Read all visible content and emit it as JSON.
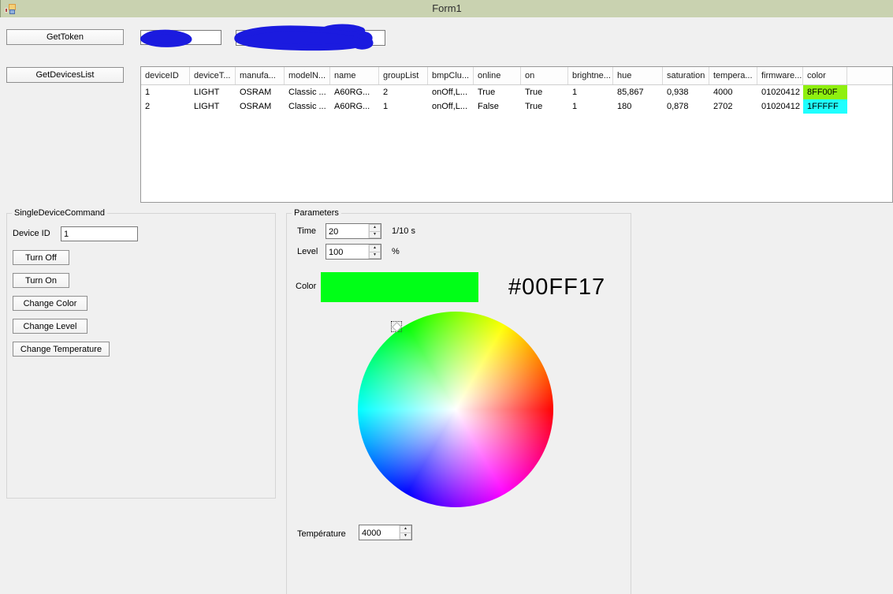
{
  "window": {
    "title": "Form1"
  },
  "toolbar": {
    "get_token_label": "GetToken",
    "get_devices_list_label": "GetDevicesList",
    "token_field_value": "",
    "secret_field_value": ""
  },
  "grid": {
    "columns": [
      "deviceID",
      "deviceT...",
      "manufa...",
      "modelN...",
      "name",
      "groupList",
      "bmpClu...",
      "online",
      "on",
      "brightne...",
      "hue",
      "saturation",
      "tempera...",
      "firmware...",
      "color"
    ],
    "rows": [
      {
        "cells": [
          "1",
          "LIGHT",
          "OSRAM",
          "Classic ...",
          "A60RG...",
          "2",
          "onOff,L...",
          "True",
          "True",
          "1",
          "85,867",
          "0,938",
          "4000",
          "01020412",
          "8FF00F"
        ],
        "color_bg": "#8FF00F"
      },
      {
        "cells": [
          "2",
          "LIGHT",
          "OSRAM",
          "Classic ...",
          "A60RG...",
          "1",
          "onOff,L...",
          "False",
          "True",
          "1",
          "180",
          "0,878",
          "2702",
          "01020412",
          "1FFFFF"
        ],
        "color_bg": "#1FFFFF"
      }
    ]
  },
  "single_device_command": {
    "title": "SingleDeviceCommand",
    "device_id_label": "Device ID",
    "device_id_value": "1",
    "turn_off_label": "Turn Off",
    "turn_on_label": "Turn On",
    "change_color_label": "Change Color",
    "change_level_label": "Change Level",
    "change_temperature_label": "Change Temperature"
  },
  "parameters": {
    "title": "Parameters",
    "time_label": "Time",
    "time_value": "20",
    "time_unit": "1/10 s",
    "level_label": "Level",
    "level_value": "100",
    "level_unit": "%",
    "color_label": "Color",
    "color_hex_text": "#00FF17",
    "swatch_color": "#00FF17",
    "temperature_label": "Température",
    "temperature_value": "4000"
  },
  "colors": {
    "titlebar": "#c9d2b0",
    "redaction_blue": "#1b1bdf",
    "form_background": "#f0f0f0"
  }
}
